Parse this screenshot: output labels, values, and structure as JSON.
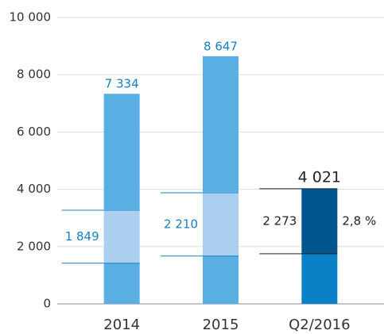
{
  "chart_data": {
    "type": "bar",
    "stacked": true,
    "categories": [
      "2014",
      "2015",
      "Q2/2016"
    ],
    "series": [
      {
        "colors": [
          "#5aafe3",
          "#5aafe3",
          "#0a80c6"
        ],
        "values": [
          1420,
          1668,
          1748
        ]
      },
      {
        "colors": [
          "#abd0ef",
          "#abd0ef",
          "#00558f"
        ],
        "values": [
          1849,
          2210,
          2273
        ],
        "value_labels": [
          "1 849",
          "2 210",
          "2 273"
        ]
      },
      {
        "colors": [
          "#5aafe3",
          "#5aafe3",
          "#5aafe3"
        ],
        "values": [
          4065,
          4769,
          0
        ]
      }
    ],
    "totals": [
      7334,
      8647,
      4021
    ],
    "total_labels": [
      "7 334",
      "8 647",
      "4 021"
    ],
    "label_colors": [
      "#1a7fc0",
      "#1a7fc0",
      "#222222"
    ],
    "annotation": "2,8 %",
    "ylim": [
      0,
      10000
    ],
    "yticks": [
      0,
      {
        "value": 2000,
        "label": "2 000"
      },
      {
        "value": 4000,
        "label": "4 000"
      },
      {
        "value": 6000,
        "label": "6 000"
      },
      {
        "value": 8000,
        "label": "8 000"
      },
      {
        "value": 10000,
        "label": "10 000"
      }
    ],
    "grid": true
  }
}
